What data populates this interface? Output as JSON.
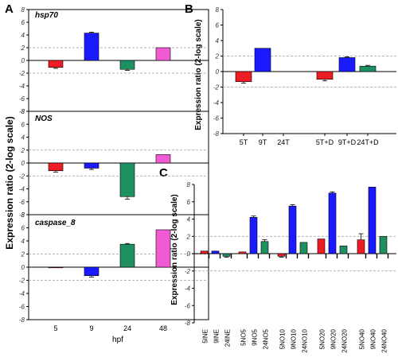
{
  "colors": {
    "red": "#ee1c24",
    "blue": "#1a1aff",
    "green": "#1e9062",
    "pink": "#f05ad2",
    "threshold_line": "#9a9a9a",
    "axis": "#000000"
  },
  "panel_labels": [
    "A",
    "B",
    "C"
  ],
  "chart_data": [
    {
      "panel": "A",
      "type": "bar",
      "title": "hsp70",
      "ylabel": "Expression ratio (2-log scale)",
      "xlabel": "hpf",
      "categories": [
        "5",
        "9",
        "24",
        "48"
      ],
      "values": [
        -1.1,
        4.3,
        -1.4,
        2.0
      ],
      "errors": [
        0.15,
        0.15,
        0.15,
        0.0
      ],
      "bar_colors": [
        "red",
        "blue",
        "green",
        "pink"
      ],
      "ylim": [
        -8,
        8
      ],
      "yticks": [
        -8,
        -6,
        -4,
        -2,
        0,
        2,
        4,
        6,
        8
      ],
      "threshold_lines": [
        2,
        -2
      ],
      "grid": false
    },
    {
      "panel": "A",
      "type": "bar",
      "title": "NOS",
      "categories": [
        "5",
        "9",
        "24",
        "48"
      ],
      "values": [
        -1.2,
        -0.8,
        -5.2,
        1.3
      ],
      "errors": [
        0.2,
        0.2,
        0.4,
        0.0
      ],
      "bar_colors": [
        "red",
        "blue",
        "green",
        "pink"
      ],
      "ylim": [
        -8,
        8
      ],
      "yticks": [
        -8,
        -6,
        -4,
        -2,
        0,
        2,
        4,
        6,
        8
      ],
      "threshold_lines": [
        2,
        -2
      ],
      "grid": false
    },
    {
      "panel": "A",
      "type": "bar",
      "title": "caspase_8",
      "categories": [
        "5",
        "9",
        "24",
        "48"
      ],
      "values": [
        -0.1,
        -1.3,
        3.5,
        5.7
      ],
      "errors": [
        0.0,
        0.2,
        0.1,
        0.0
      ],
      "bar_colors": [
        "red",
        "blue",
        "green",
        "pink"
      ],
      "ylim": [
        -8,
        8
      ],
      "yticks": [
        -8,
        -6,
        -4,
        -2,
        0,
        2,
        4,
        6,
        8
      ],
      "threshold_lines": [
        2,
        -2
      ],
      "grid": false
    },
    {
      "panel": "B",
      "type": "bar",
      "ylabel": "Expression  ratio (2-log scale)",
      "categories": [
        "5T",
        "9T",
        "24T",
        "5T+D",
        "9T+D",
        "24T+D"
      ],
      "values": [
        -1.3,
        3.0,
        0,
        -1.0,
        1.8,
        0.7
      ],
      "errors": [
        0.2,
        0.0,
        0.0,
        0.2,
        0.1,
        0.1
      ],
      "bar_colors": [
        "red",
        "blue",
        "green",
        "red",
        "blue",
        "green"
      ],
      "ylim": [
        -8,
        8
      ],
      "yticks": [
        -8,
        -6,
        -4,
        -2,
        0,
        2,
        4,
        6,
        8
      ],
      "threshold_lines": [
        2,
        -2
      ],
      "grid": false
    },
    {
      "panel": "C",
      "type": "bar",
      "ylabel": "Expression  ratio (2-log scale)",
      "categories": [
        "5INE",
        "9INE",
        "24INE",
        "5NO5",
        "9NO5",
        "24NO5",
        "5NO10",
        "9NO10",
        "24NO10",
        "5NO20",
        "9NO20",
        "24NO20",
        "5NO40",
        "9NO40",
        "24NO40"
      ],
      "values": [
        0.3,
        0.3,
        -0.3,
        0.2,
        4.2,
        1.4,
        -0.3,
        5.5,
        1.3,
        1.7,
        7.0,
        0.9,
        1.6,
        7.7,
        2.0
      ],
      "errors": [
        0.0,
        0.0,
        0.1,
        0.0,
        0.15,
        0.2,
        0.1,
        0.15,
        0.0,
        0.0,
        0.15,
        0.0,
        0.7,
        0.0,
        0.0
      ],
      "bar_colors": [
        "red",
        "blue",
        "green",
        "red",
        "blue",
        "green",
        "red",
        "blue",
        "green",
        "red",
        "blue",
        "green",
        "red",
        "blue",
        "green"
      ],
      "ylim": [
        -8,
        8
      ],
      "yticks": [
        -8,
        -6,
        -4,
        -2,
        0,
        2,
        4,
        6,
        8
      ],
      "threshold_lines": [
        2,
        -2
      ],
      "grid": false
    }
  ]
}
